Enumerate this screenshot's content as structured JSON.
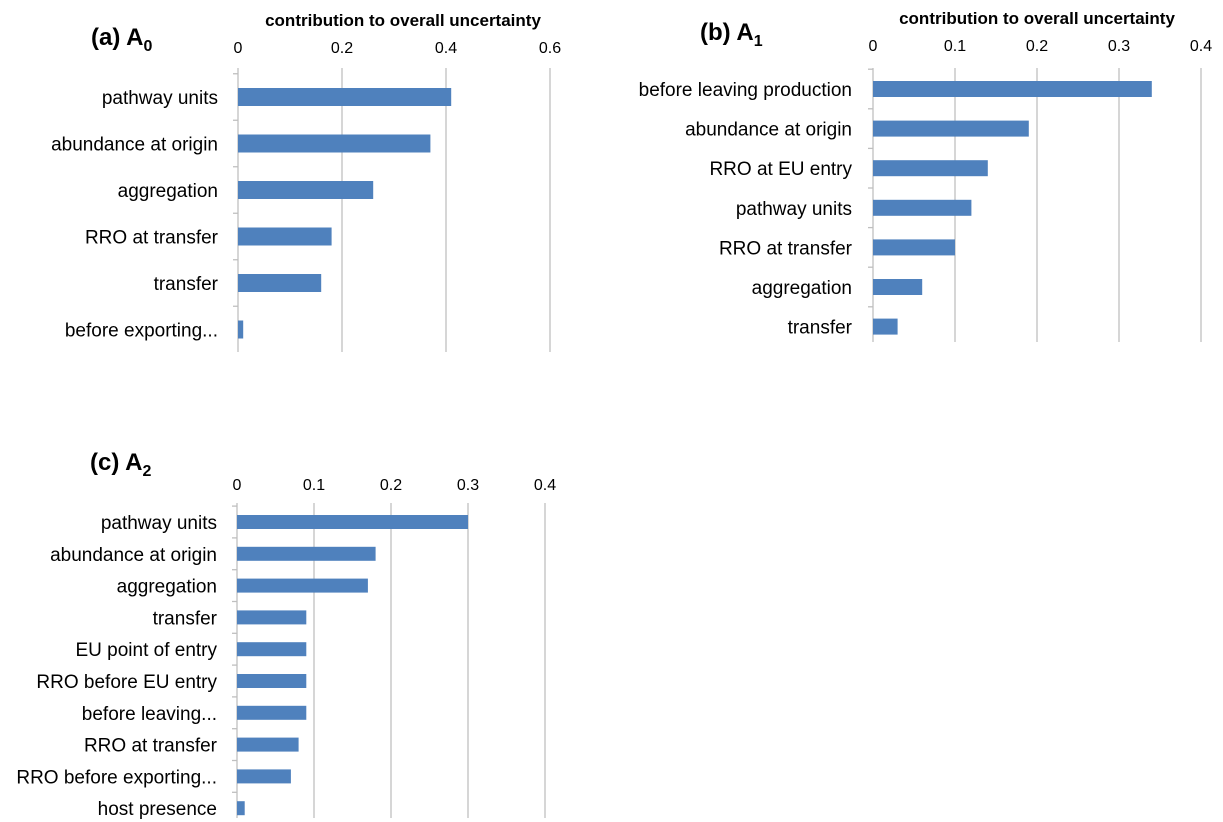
{
  "chart_data": [
    {
      "type": "bar",
      "orientation": "horizontal",
      "panel_label": "(a) A",
      "panel_sub": "0",
      "xlabel": "contribution to overall uncertainty",
      "xlim": [
        0,
        0.6
      ],
      "ticks": [
        "0",
        "0.2",
        "0.4",
        "0.6"
      ],
      "tick_values": [
        0,
        0.2,
        0.4,
        0.6
      ],
      "categories": [
        "pathway units",
        "abundance at origin",
        "aggregation",
        "RRO at transfer",
        "transfer",
        "before exporting..."
      ],
      "values": [
        0.41,
        0.37,
        0.26,
        0.18,
        0.16,
        0.01
      ],
      "grid": true,
      "colors": {
        "bar": "#4f81bd",
        "grid": "#bfbfbf"
      }
    },
    {
      "type": "bar",
      "orientation": "horizontal",
      "panel_label": "(b) A",
      "panel_sub": "1",
      "xlabel": "contribution to overall uncertainty",
      "xlim": [
        0,
        0.4
      ],
      "ticks": [
        "0",
        "0.1",
        "0.2",
        "0.3",
        "0.4"
      ],
      "tick_values": [
        0,
        0.1,
        0.2,
        0.3,
        0.4
      ],
      "categories": [
        "before leaving production",
        "abundance at origin",
        "RRO at EU entry",
        "pathway units",
        "RRO at transfer",
        "aggregation",
        "transfer"
      ],
      "values": [
        0.34,
        0.19,
        0.14,
        0.12,
        0.1,
        0.06,
        0.03
      ],
      "grid": true,
      "colors": {
        "bar": "#4f81bd",
        "grid": "#bfbfbf"
      }
    },
    {
      "type": "bar",
      "orientation": "horizontal",
      "panel_label": "(c) A",
      "panel_sub": "2",
      "xlabel": "",
      "xlim": [
        0,
        0.4
      ],
      "ticks": [
        "0",
        "0.1",
        "0.2",
        "0.3",
        "0.4"
      ],
      "tick_values": [
        0,
        0.1,
        0.2,
        0.3,
        0.4
      ],
      "categories": [
        "pathway units",
        "abundance at origin",
        "aggregation",
        "transfer",
        "EU point of entry",
        "RRO before EU entry",
        "before leaving...",
        "RRO at transfer",
        "RRO before exporting...",
        "host presence"
      ],
      "values": [
        0.3,
        0.18,
        0.17,
        0.09,
        0.09,
        0.09,
        0.09,
        0.08,
        0.07,
        0.01
      ],
      "grid": true,
      "colors": {
        "bar": "#4f81bd",
        "grid": "#bfbfbf"
      }
    }
  ]
}
